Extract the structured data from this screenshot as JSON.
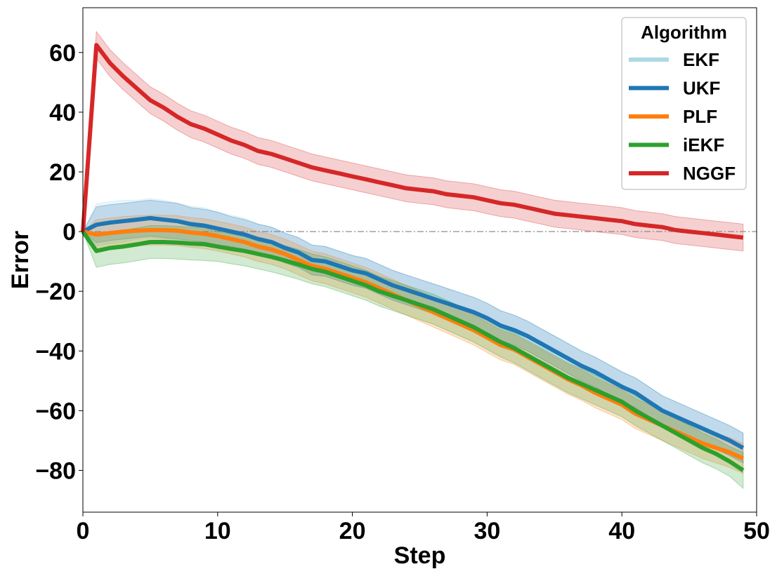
{
  "chart_data": {
    "type": "line",
    "xlabel": "Step",
    "ylabel": "Error",
    "xlim": [
      0,
      50
    ],
    "ylim": [
      -94,
      75
    ],
    "xticks": [
      0,
      10,
      20,
      30,
      40,
      50
    ],
    "yticks": [
      -80,
      -60,
      -40,
      -20,
      0,
      20,
      40,
      60
    ],
    "tick_labels_x": [
      "0",
      "10",
      "20",
      "30",
      "40",
      "50"
    ],
    "tick_labels_y": [
      "−80",
      "−60",
      "−40",
      "−20",
      "0",
      "20",
      "40",
      "60"
    ],
    "reference_line": {
      "y": 0,
      "style": "dash-dot",
      "color": "#808080"
    },
    "grid": false,
    "legend": {
      "title": "Algorithm",
      "placement": "top-right"
    },
    "x": [
      0,
      1,
      2,
      3,
      4,
      5,
      6,
      7,
      8,
      9,
      10,
      11,
      12,
      13,
      14,
      15,
      16,
      17,
      18,
      19,
      20,
      21,
      22,
      23,
      24,
      25,
      26,
      27,
      28,
      29,
      30,
      31,
      32,
      33,
      34,
      35,
      36,
      37,
      38,
      39,
      40,
      41,
      42,
      43,
      44,
      45,
      46,
      47,
      48,
      49
    ],
    "series": [
      {
        "name": "EKF",
        "color": "#add8e6",
        "band_halfwidth": [
          0,
          7,
          7,
          7,
          6.5,
          6.5,
          6.5,
          6,
          6,
          6,
          5.5,
          5.5,
          5.5,
          5,
          5,
          5,
          5,
          5,
          5,
          5,
          5,
          5,
          5,
          5,
          5,
          5,
          5,
          5,
          5,
          5,
          5,
          5,
          5,
          5,
          5,
          5,
          5,
          5,
          5,
          5,
          5,
          5,
          5,
          5,
          5,
          5,
          5,
          5,
          5,
          5
        ],
        "values": [
          0,
          2.3,
          3,
          3.5,
          4,
          4.5,
          4,
          3.5,
          2.5,
          2,
          1,
          0,
          -1,
          -2.5,
          -3.5,
          -5.5,
          -7,
          -9.5,
          -10,
          -11.5,
          -13,
          -14,
          -16,
          -18,
          -19.5,
          -21,
          -22.5,
          -24,
          -25.5,
          -27,
          -29,
          -31.5,
          -33,
          -35,
          -37.5,
          -40,
          -42.5,
          -45,
          -47,
          -49.5,
          -52,
          -54,
          -57,
          -60,
          -62,
          -64,
          -66,
          -68,
          -70,
          -72.5
        ]
      },
      {
        "name": "UKF",
        "color": "#1f77b4",
        "band_halfwidth": [
          0,
          6,
          6,
          6,
          6,
          6,
          6,
          6,
          5.5,
          5.5,
          5.5,
          5,
          5,
          5,
          5,
          5,
          5,
          5,
          5,
          5,
          5,
          5,
          5,
          5,
          5,
          5,
          5,
          5,
          5,
          5,
          5,
          5,
          5,
          5,
          5,
          5,
          5,
          5,
          5,
          5,
          5,
          5,
          5,
          5,
          5,
          5,
          5,
          5,
          5,
          5
        ],
        "values": [
          0,
          2.3,
          3,
          3.5,
          4,
          4.5,
          4,
          3.5,
          2.5,
          2,
          1,
          0,
          -1,
          -2.5,
          -3.5,
          -5.5,
          -7,
          -9.5,
          -10,
          -11.5,
          -13,
          -14,
          -16,
          -18,
          -19.5,
          -21,
          -22.5,
          -24,
          -25.5,
          -27,
          -29,
          -31.5,
          -33,
          -35,
          -37.5,
          -40,
          -42.5,
          -45,
          -47,
          -49.5,
          -52,
          -54,
          -57,
          -60,
          -62,
          -64,
          -66,
          -68,
          -70,
          -72.5
        ]
      },
      {
        "name": "PLF",
        "color": "#ff7f0e",
        "band_halfwidth": [
          0,
          5,
          5,
          5,
          5,
          5,
          5,
          5,
          5,
          5,
          5,
          5,
          5,
          5,
          5,
          5,
          5,
          5,
          5,
          5,
          5,
          5,
          5,
          5,
          5,
          5,
          5,
          5,
          5,
          5,
          5,
          5,
          5,
          5,
          5,
          5,
          5,
          5,
          5,
          5,
          5,
          5,
          5,
          5,
          5,
          5,
          5,
          5,
          5,
          5
        ],
        "values": [
          0,
          -1,
          -0.5,
          0,
          0.3,
          0.5,
          0.5,
          0.3,
          -0.3,
          -0.7,
          -1.5,
          -2.5,
          -3.5,
          -5,
          -6,
          -7.5,
          -9.5,
          -11.5,
          -12.5,
          -14,
          -15.5,
          -17,
          -19,
          -21,
          -23,
          -25,
          -27,
          -29,
          -31,
          -33,
          -35.5,
          -38,
          -39.5,
          -42,
          -44.5,
          -47,
          -49.5,
          -51.5,
          -54,
          -56,
          -58,
          -61,
          -63,
          -65,
          -67,
          -69,
          -71,
          -72.5,
          -74,
          -76
        ]
      },
      {
        "name": "iEKF",
        "color": "#2ca02c",
        "band_halfwidth": [
          0,
          5.5,
          5.5,
          5.5,
          5.5,
          5.5,
          5.5,
          5.5,
          5.5,
          5.5,
          5,
          5,
          5,
          5,
          5,
          5,
          5,
          5,
          5,
          5,
          5,
          5,
          5,
          5,
          5,
          5,
          5,
          5,
          5,
          5,
          5,
          5,
          5,
          5,
          5,
          5,
          5,
          5,
          5,
          5,
          5,
          5,
          5,
          5,
          5,
          5,
          5,
          5,
          5,
          6
        ],
        "values": [
          0,
          -6.5,
          -5.5,
          -5,
          -4.3,
          -3.5,
          -3.5,
          -3.7,
          -4,
          -4.2,
          -5,
          -5.8,
          -6.5,
          -7.5,
          -8.5,
          -9.7,
          -11,
          -12.5,
          -13.5,
          -15,
          -16.5,
          -18,
          -20,
          -21.5,
          -23,
          -24.5,
          -26,
          -28,
          -30,
          -32,
          -34.5,
          -37,
          -39,
          -41.5,
          -44,
          -46.5,
          -49,
          -51,
          -53,
          -55,
          -57,
          -60,
          -62.5,
          -65,
          -67.5,
          -70,
          -72.5,
          -74.5,
          -77,
          -80
        ]
      },
      {
        "name": "NGGF",
        "color": "#d62728",
        "band_halfwidth": [
          0,
          4.5,
          4.5,
          4.5,
          4.5,
          4.5,
          4.5,
          4.5,
          4.5,
          4.5,
          4.5,
          4.5,
          4.5,
          4.5,
          4.5,
          4.5,
          4.5,
          4.5,
          4.5,
          4.5,
          4.5,
          4.5,
          4.5,
          4.5,
          4.5,
          4.5,
          4.5,
          4.5,
          4.5,
          4.5,
          4.5,
          4.5,
          4.5,
          4.5,
          4.5,
          4.5,
          4.5,
          4.5,
          4.5,
          4.5,
          4.5,
          4.5,
          4.5,
          4.5,
          4.5,
          4.5,
          4.5,
          4.5,
          4.5,
          4.5
        ],
        "values": [
          0,
          62.5,
          56.5,
          52,
          48,
          44,
          41.5,
          38.5,
          36,
          34.5,
          32.5,
          30.5,
          29,
          27,
          26,
          24.5,
          23,
          21.5,
          20.5,
          19.5,
          18.5,
          17.5,
          16.5,
          15.5,
          14.5,
          14,
          13.5,
          12.5,
          12,
          11.5,
          10.5,
          9.5,
          9,
          8,
          7,
          6,
          5.5,
          5,
          4.5,
          4,
          3.5,
          2.5,
          2,
          1.5,
          0.5,
          0,
          -0.5,
          -1,
          -1.5,
          -2
        ]
      }
    ]
  }
}
